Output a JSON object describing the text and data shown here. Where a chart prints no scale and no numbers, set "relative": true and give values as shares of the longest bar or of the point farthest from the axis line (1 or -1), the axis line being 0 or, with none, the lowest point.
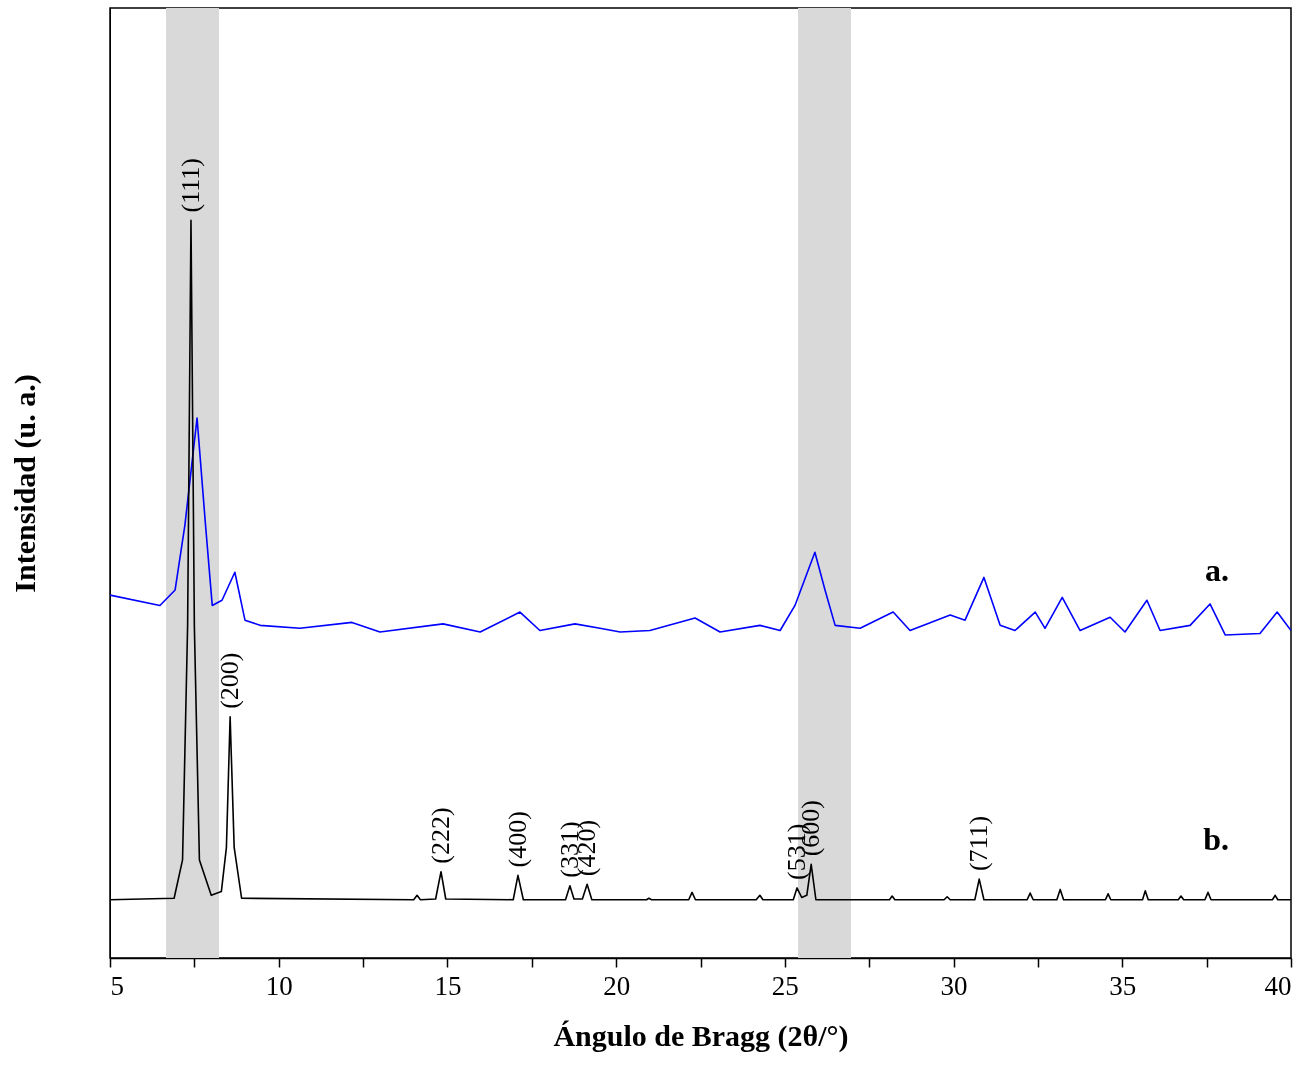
{
  "chart_data": {
    "type": "line",
    "relative": true,
    "xlabel": "Ángulo de Bragg (2θ/°)",
    "ylabel": "Intensidad (u. a.)",
    "xlim": [
      5,
      40
    ],
    "xticks": [
      5,
      {
        "value": 7.5,
        "label": null
      },
      10,
      {
        "value": 12.5,
        "label": null
      },
      15,
      {
        "value": 17.5,
        "label": null
      },
      20,
      {
        "value": 22.5,
        "label": null
      },
      25,
      {
        "value": 27.5,
        "label": null
      },
      30,
      {
        "value": 32.5,
        "label": null
      },
      35,
      {
        "value": 37.5,
        "label": null
      },
      40
    ],
    "grid": false,
    "series": [
      {
        "name": "a.",
        "color": "#0000ff",
        "x": [
          5,
          6.48,
          6.93,
          7.22,
          7.58,
          7.82,
          8.03,
          8.32,
          8.7,
          9.0,
          9.45,
          10.63,
          12.17,
          13.0,
          14.87,
          15.97,
          17.15,
          17.74,
          18.78,
          19.52,
          20.12,
          21.0,
          22.34,
          23.08,
          24.26,
          24.86,
          25.3,
          25.89,
          26.19,
          26.49,
          27.23,
          28.21,
          28.71,
          29.9,
          30.34,
          30.9,
          31.38,
          31.82,
          32.42,
          32.71,
          33.22,
          33.75,
          34.64,
          35.08,
          35.73,
          36.12,
          37.01,
          37.6,
          38.05,
          39.08,
          39.59,
          40
        ],
        "values": [
          0.492,
          0.478,
          0.499,
          0.587,
          0.732,
          0.593,
          0.478,
          0.485,
          0.523,
          0.458,
          0.451,
          0.447,
          0.455,
          0.442,
          0.453,
          0.442,
          0.469,
          0.444,
          0.453,
          0.447,
          0.442,
          0.444,
          0.461,
          0.442,
          0.451,
          0.444,
          0.478,
          0.55,
          0.499,
          0.451,
          0.447,
          0.469,
          0.444,
          0.465,
          0.458,
          0.516,
          0.451,
          0.444,
          0.469,
          0.447,
          0.489,
          0.444,
          0.462,
          0.442,
          0.485,
          0.444,
          0.451,
          0.48,
          0.438,
          0.44,
          0.469,
          0.444
        ]
      },
      {
        "name": "b.",
        "color": "#000000",
        "x": [
          5,
          6.9,
          7.15,
          7.3,
          7.4,
          7.5,
          7.65,
          8.0,
          8.3,
          8.45,
          8.56,
          8.68,
          8.9,
          14.0,
          14.1,
          14.2,
          14.65,
          14.81,
          14.95,
          16.95,
          17.09,
          17.25,
          18.5,
          18.63,
          18.75,
          19.0,
          19.14,
          19.28,
          20.9,
          20.97,
          21.05,
          22.15,
          22.25,
          22.35,
          24.15,
          24.26,
          24.35,
          25.25,
          25.36,
          25.5,
          25.65,
          25.78,
          25.92,
          28.1,
          28.18,
          28.26,
          29.72,
          29.81,
          29.9,
          30.63,
          30.76,
          30.9,
          32.18,
          32.27,
          32.36,
          33.06,
          33.16,
          33.26,
          34.5,
          34.58,
          34.66,
          35.6,
          35.68,
          35.77,
          36.66,
          36.74,
          36.82,
          37.45,
          37.54,
          37.63,
          39.45,
          39.53,
          39.61,
          40
        ],
        "values": [
          0.079,
          0.081,
          0.133,
          0.45,
          1.0,
          0.45,
          0.133,
          0.085,
          0.09,
          0.15,
          0.327,
          0.15,
          0.081,
          0.079,
          0.085,
          0.079,
          0.08,
          0.117,
          0.08,
          0.079,
          0.112,
          0.079,
          0.079,
          0.098,
          0.08,
          0.08,
          0.1,
          0.079,
          0.079,
          0.081,
          0.079,
          0.079,
          0.089,
          0.079,
          0.079,
          0.085,
          0.079,
          0.079,
          0.095,
          0.082,
          0.085,
          0.127,
          0.079,
          0.079,
          0.084,
          0.079,
          0.079,
          0.083,
          0.079,
          0.079,
          0.107,
          0.079,
          0.079,
          0.088,
          0.079,
          0.079,
          0.093,
          0.079,
          0.079,
          0.087,
          0.079,
          0.079,
          0.091,
          0.079,
          0.079,
          0.084,
          0.079,
          0.079,
          0.089,
          0.079,
          0.079,
          0.085,
          0.079,
          0.079
        ]
      }
    ],
    "bands": [
      {
        "axis": "x",
        "from": 6.66,
        "to": 8.23,
        "color": "#d9d9d9"
      },
      {
        "axis": "x",
        "from": 25.39,
        "to": 26.96,
        "color": "#d9d9d9"
      }
    ],
    "annotations": [
      {
        "text": "(111)",
        "x": 7.4,
        "y": 1.0
      },
      {
        "text": "(200)",
        "x": 8.56,
        "y": 0.327
      },
      {
        "text": "(222)",
        "x": 14.81,
        "y": 0.117
      },
      {
        "text": "(400)",
        "x": 17.09,
        "y": 0.112
      },
      {
        "text": "(331)",
        "x": 18.63,
        "y": 0.098
      },
      {
        "text": "(420)",
        "x": 19.14,
        "y": 0.1
      },
      {
        "text": "(531)",
        "x": 25.36,
        "y": 0.095
      },
      {
        "text": "(600)",
        "x": 25.78,
        "y": 0.127
      },
      {
        "text": "(711)",
        "x": 30.76,
        "y": 0.107
      }
    ]
  }
}
